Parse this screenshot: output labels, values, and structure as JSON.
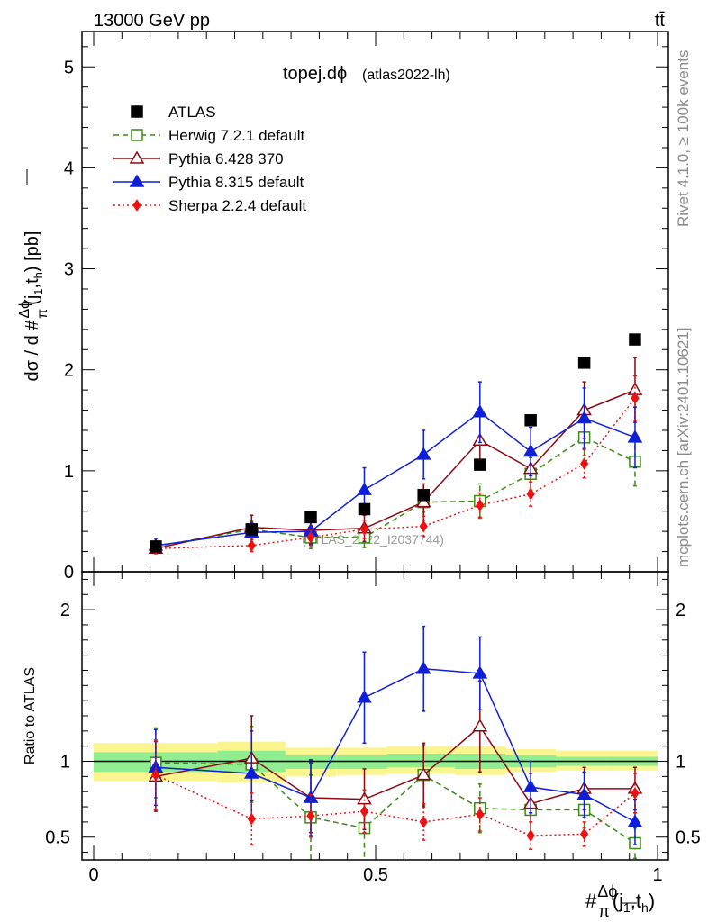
{
  "header": {
    "left": "13000 GeV pp",
    "right": "tt̄"
  },
  "side_text": {
    "rivet": "Rivet 4.1.0, ≥ 100k events",
    "source": "mcplots.cern.ch [arXiv:2401.10621]"
  },
  "chart_data": [
    {
      "type": "line",
      "panel": "main",
      "title": "topej.dϕ",
      "subtitle": "(atlas2022-lh)",
      "watermark": "(ATLAS_2022_I2037744)",
      "ylabel": "dσ / d #Δϕ/π(j1,th) [pb]",
      "ylabel_parts": [
        "dσ / d #",
        "Δϕ",
        "π",
        "(j",
        "1",
        ",t",
        "h",
        ") [pb]"
      ],
      "xlim": [
        0,
        1
      ],
      "ylim": [
        0,
        5.35
      ],
      "yticks": [
        0,
        1,
        2,
        3,
        4,
        5
      ],
      "yticklabels": [
        "0",
        "1",
        "2",
        "3",
        "4",
        "5"
      ],
      "x": [
        0.11,
        0.28,
        0.385,
        0.48,
        0.585,
        0.685,
        0.775,
        0.87,
        0.96
      ],
      "series": [
        {
          "name": "ATLAS",
          "key": "atlas",
          "color": "#000000",
          "marker": "square-filled",
          "line": "none",
          "values": [
            0.25,
            0.42,
            0.54,
            0.62,
            0.76,
            1.06,
            1.5,
            2.07,
            2.3
          ],
          "errors": [
            0,
            0,
            0,
            0,
            0,
            0,
            0,
            0,
            0
          ]
        },
        {
          "name": "Herwig 7.2.1 default",
          "key": "herwig",
          "color": "#3a8a14",
          "marker": "square-open",
          "line": "dashed",
          "values": [
            0.25,
            0.42,
            0.34,
            0.34,
            0.69,
            0.7,
            0.97,
            1.33,
            1.09
          ],
          "errors": [
            0.05,
            0.08,
            0.11,
            0.1,
            0.1,
            0.17,
            0.16,
            0.18,
            0.24
          ]
        },
        {
          "name": "Pythia 6.428 370",
          "key": "py6",
          "color": "#8b0a12",
          "marker": "triangle-open",
          "line": "solid",
          "values": [
            0.23,
            0.44,
            0.41,
            0.43,
            0.69,
            1.3,
            1.02,
            1.6,
            1.8
          ],
          "errors": [
            0.05,
            0.12,
            0.13,
            0.13,
            0.18,
            0.28,
            0.22,
            0.28,
            0.32
          ]
        },
        {
          "name": "Pythia 8.315 default",
          "key": "py8",
          "color": "#0f1fd8",
          "marker": "triangle-filled",
          "line": "solid",
          "values": [
            0.26,
            0.39,
            0.4,
            0.81,
            1.16,
            1.58,
            1.19,
            1.52,
            1.33
          ],
          "errors": [
            0.07,
            0.09,
            0.13,
            0.22,
            0.24,
            0.3,
            0.24,
            0.3,
            0.3
          ]
        },
        {
          "name": "Sherpa 2.2.4 default",
          "key": "sherpa",
          "color": "#ee1111",
          "marker": "diamond-filled",
          "line": "dotted",
          "values": [
            0.23,
            0.26,
            0.34,
            0.42,
            0.45,
            0.66,
            0.77,
            1.07,
            1.72
          ],
          "errors": [
            0.04,
            0.06,
            0.08,
            0.09,
            0.1,
            0.12,
            0.12,
            0.14,
            0.22
          ]
        }
      ]
    },
    {
      "type": "line",
      "panel": "ratio",
      "ylabel": "Ratio to ATLAS",
      "xlabel": "#Δϕ/π(j1,th)",
      "xlabel_parts": [
        "#",
        "Δϕ",
        "π",
        "(j",
        "1",
        ",t",
        "h",
        ")"
      ],
      "xlim": [
        0,
        1
      ],
      "ylim": [
        0.35,
        2.25
      ],
      "xticks": [
        0,
        0.5,
        1
      ],
      "xticklabels": [
        "0",
        "0.5",
        "1"
      ],
      "yticks": [
        0.5,
        1,
        2
      ],
      "yticklabels": [
        "0.5",
        "1",
        "2"
      ],
      "bands": {
        "edges": [
          0,
          0.22,
          0.34,
          0.43,
          0.52,
          0.64,
          0.73,
          0.82,
          0.91,
          1.0
        ],
        "yellow": [
          [
            0.87,
            1.12
          ],
          [
            0.86,
            1.13
          ],
          [
            0.9,
            1.09
          ],
          [
            0.91,
            1.09
          ],
          [
            0.92,
            1.1
          ],
          [
            0.91,
            1.1
          ],
          [
            0.93,
            1.08
          ],
          [
            0.94,
            1.07
          ],
          [
            0.94,
            1.07
          ]
        ],
        "green": [
          [
            0.93,
            1.06
          ],
          [
            0.93,
            1.07
          ],
          [
            0.95,
            1.04
          ],
          [
            0.95,
            1.04
          ],
          [
            0.96,
            1.05
          ],
          [
            0.95,
            1.05
          ],
          [
            0.96,
            1.04
          ],
          [
            0.97,
            1.03
          ],
          [
            0.97,
            1.03
          ]
        ]
      },
      "x": [
        0.11,
        0.28,
        0.385,
        0.48,
        0.585,
        0.685,
        0.775,
        0.87,
        0.96
      ],
      "series": [
        {
          "name": "Herwig 7.2.1 default",
          "key": "herwig",
          "values": [
            0.99,
            0.98,
            0.63,
            0.56,
            0.91,
            0.69,
            0.68,
            0.68,
            0.46
          ],
          "errors": [
            0.23,
            0.25,
            0.28,
            0.25,
            0.2,
            0.16,
            0.16,
            0.12,
            0.1
          ]
        },
        {
          "name": "Pythia 6.428 370",
          "key": "py6",
          "values": [
            0.9,
            1.02,
            0.76,
            0.75,
            0.91,
            1.23,
            0.72,
            0.82,
            0.82
          ],
          "errors": [
            0.23,
            0.28,
            0.23,
            0.2,
            0.21,
            0.3,
            0.2,
            0.14,
            0.14
          ]
        },
        {
          "name": "Pythia 8.315 default",
          "key": "py8",
          "values": [
            0.96,
            0.92,
            0.76,
            1.42,
            1.61,
            1.58,
            0.83,
            0.78,
            0.6
          ],
          "errors": [
            0.25,
            0.28,
            0.25,
            0.3,
            0.28,
            0.24,
            0.17,
            0.15,
            0.15
          ]
        },
        {
          "name": "Sherpa 2.2.4 default",
          "key": "sherpa",
          "values": [
            0.91,
            0.62,
            0.64,
            0.67,
            0.6,
            0.65,
            0.51,
            0.52,
            0.79
          ],
          "errors": [
            0.23,
            0.17,
            0.14,
            0.14,
            0.12,
            0.11,
            0.09,
            0.08,
            0.13
          ]
        }
      ]
    }
  ]
}
